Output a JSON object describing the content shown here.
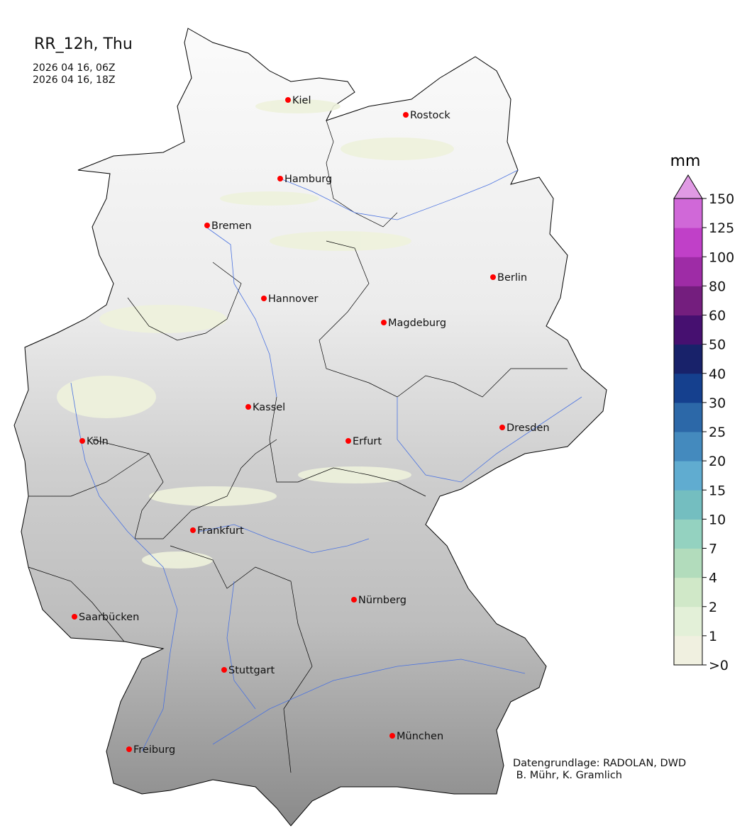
{
  "map": {
    "title": "RR_12h, Thu",
    "time_start": "2026 04 16, 06Z",
    "time_end": "2026 04 16, 18Z",
    "credit_line1": "Datengrundlage: RADOLAN, DWD",
    "credit_line2": " B. Mühr, K. Gramlich",
    "cities": [
      "Kiel",
      "Rostock",
      "Hamburg",
      "Bremen",
      "Berlin",
      "Hannover",
      "Magdeburg",
      "Kassel",
      "Dresden",
      "Erfurt",
      "Köln",
      "Frankfurt",
      "Nürnberg",
      "Saarbücken",
      "Stuttgart",
      "Freiburg",
      "München"
    ],
    "city_marker_color": "#ff0000",
    "river_color": "#4a72e0"
  },
  "colorbar": {
    "unit": "mm",
    "ticks": [
      ">0",
      "1",
      "2",
      "4",
      "7",
      "10",
      "15",
      "20",
      "25",
      "30",
      "40",
      "50",
      "60",
      "80",
      "100",
      "125",
      "150"
    ],
    "colors": [
      "#f0f0e0",
      "#e3f0d8",
      "#d0e8c8",
      "#b2dcbc",
      "#94d2c0",
      "#74bec0",
      "#60acd0",
      "#448abe",
      "#2c68a8",
      "#15408e",
      "#18226a",
      "#461070",
      "#741e7e",
      "#9e2ca6",
      "#c040c8",
      "#d068d8"
    ],
    "extend_color": "#e09ae4"
  }
}
